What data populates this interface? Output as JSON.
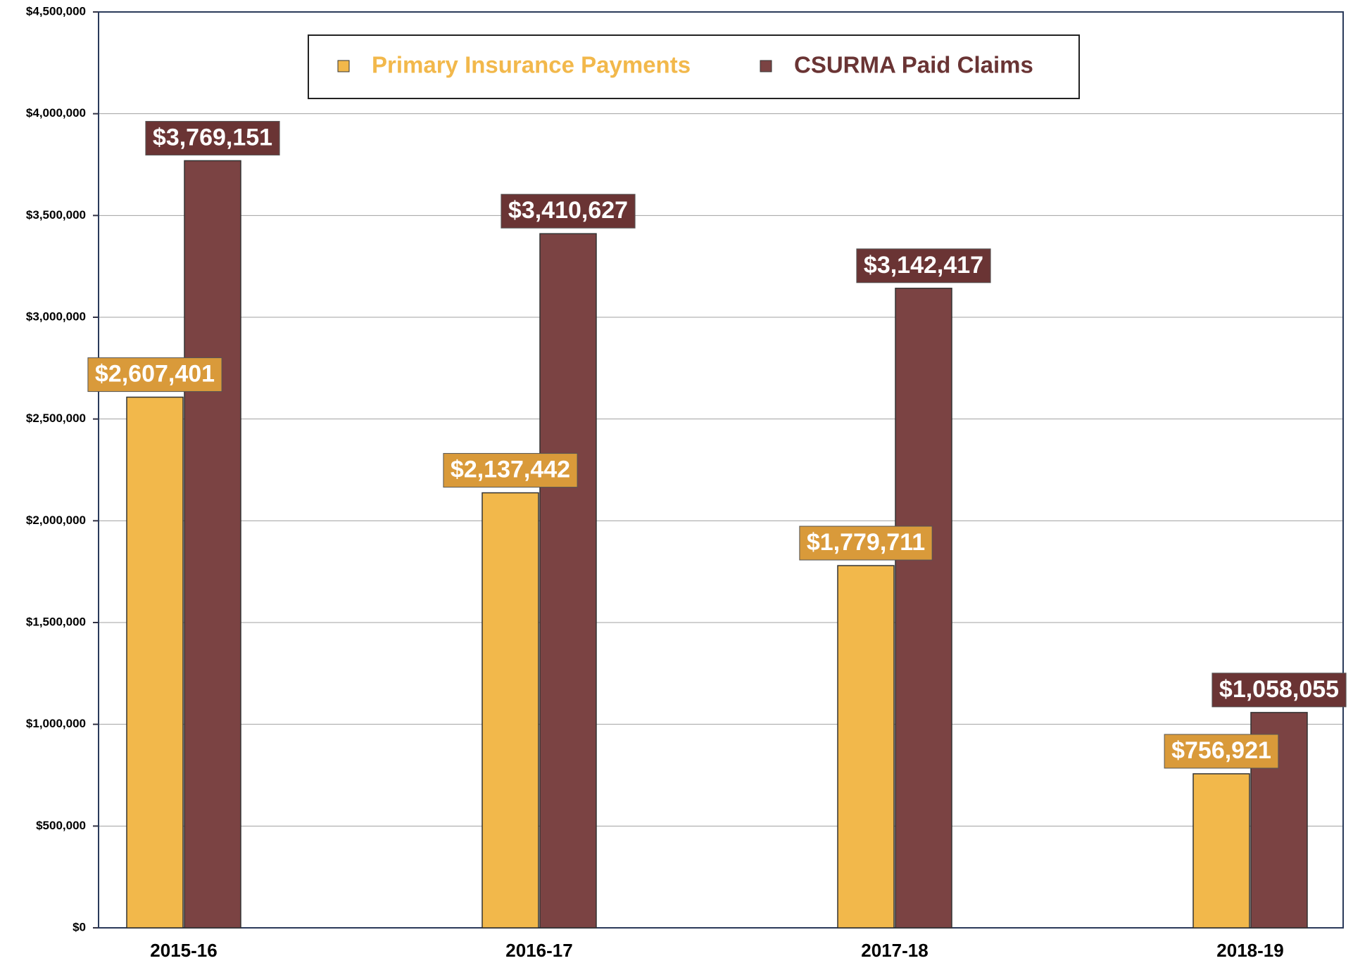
{
  "chart_data": {
    "type": "bar",
    "categories": [
      "2015-16",
      "2016-17",
      "2017-18",
      "2018-19"
    ],
    "series": [
      {
        "name": "Primary Insurance Payments",
        "color": "#f2b84b",
        "label_color": "#d99a3a",
        "values": [
          2607401,
          2137442,
          1779711,
          756921
        ],
        "value_labels": [
          "$2,607,401",
          "$2,137,442",
          "$1,779,711",
          "$756,921"
        ]
      },
      {
        "name": "CSURMA Paid Claims",
        "color": "#7b4343",
        "label_color": "#6a3434",
        "values": [
          3769151,
          3410627,
          3142417,
          1058055
        ],
        "value_labels": [
          "$3,769,151",
          "$3,410,627",
          "$3,142,417",
          "$1,058,055"
        ]
      }
    ],
    "ylim": [
      0,
      4500000
    ],
    "yticks": [
      {
        "value": 0,
        "label": "$0"
      },
      {
        "value": 500000,
        "label": "$500,000"
      },
      {
        "value": 1000000,
        "label": "$1,000,000"
      },
      {
        "value": 1500000,
        "label": "$1,500,000"
      },
      {
        "value": 2000000,
        "label": "$2,000,000"
      },
      {
        "value": 2500000,
        "label": "$2,500,000"
      },
      {
        "value": 3000000,
        "label": "$3,000,000"
      },
      {
        "value": 3500000,
        "label": "$3,500,000"
      },
      {
        "value": 4000000,
        "label": "$4,000,000"
      },
      {
        "value": 4500000,
        "label": "$4,500,000"
      }
    ],
    "grid": true,
    "legend": "top"
  }
}
